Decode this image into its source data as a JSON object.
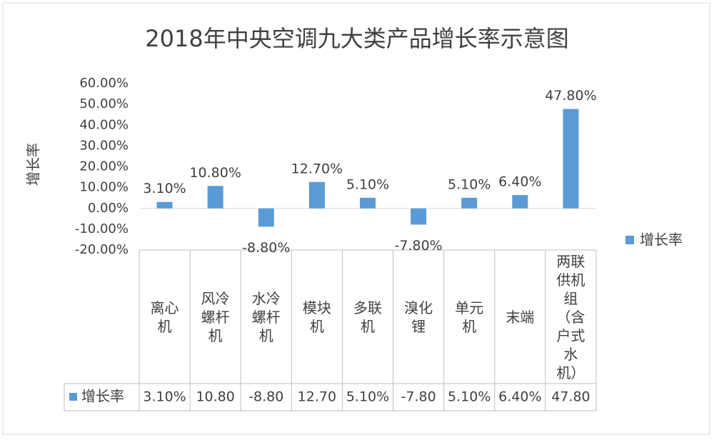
{
  "chart_data": {
    "type": "bar",
    "title": "2018年中央空调九大类产品增长率示意图",
    "y_label": "增长率",
    "categories": [
      "离心机",
      "风冷螺杆机",
      "水冷螺杆机",
      "模块机",
      "多联机",
      "溴化锂",
      "单元机",
      "末端",
      "两联供机组（含户式水机）"
    ],
    "series": [
      {
        "name": "增长率",
        "color": "#5b9bd5",
        "values": [
          3.1,
          10.8,
          -8.8,
          12.7,
          5.1,
          -7.8,
          5.1,
          6.4,
          47.8
        ],
        "value_labels": [
          "3.10%",
          "10.80%",
          "-8.80%",
          "12.70%",
          "5.10%",
          "-7.80%",
          "5.10%",
          "6.40%",
          "47.80%"
        ],
        "table_labels": [
          "3.10%",
          "10.80",
          "-8.80",
          "12.70",
          "5.10%",
          "-7.80",
          "5.10%",
          "6.40%",
          "47.80"
        ]
      }
    ],
    "ylim": [
      -20,
      60
    ],
    "yticks": [
      {
        "value": 60,
        "label": "60.00%"
      },
      {
        "value": 50,
        "label": "50.00%"
      },
      {
        "value": 40,
        "label": "40.00%"
      },
      {
        "value": 30,
        "label": "30.00%"
      },
      {
        "value": 20,
        "label": "20.00%"
      },
      {
        "value": 10,
        "label": "10.00%"
      },
      {
        "value": 0,
        "label": "0.00%"
      },
      {
        "value": -10,
        "label": "-10.00%"
      },
      {
        "value": -20,
        "label": "-20.00%"
      }
    ],
    "grid": false,
    "legend": "right"
  }
}
